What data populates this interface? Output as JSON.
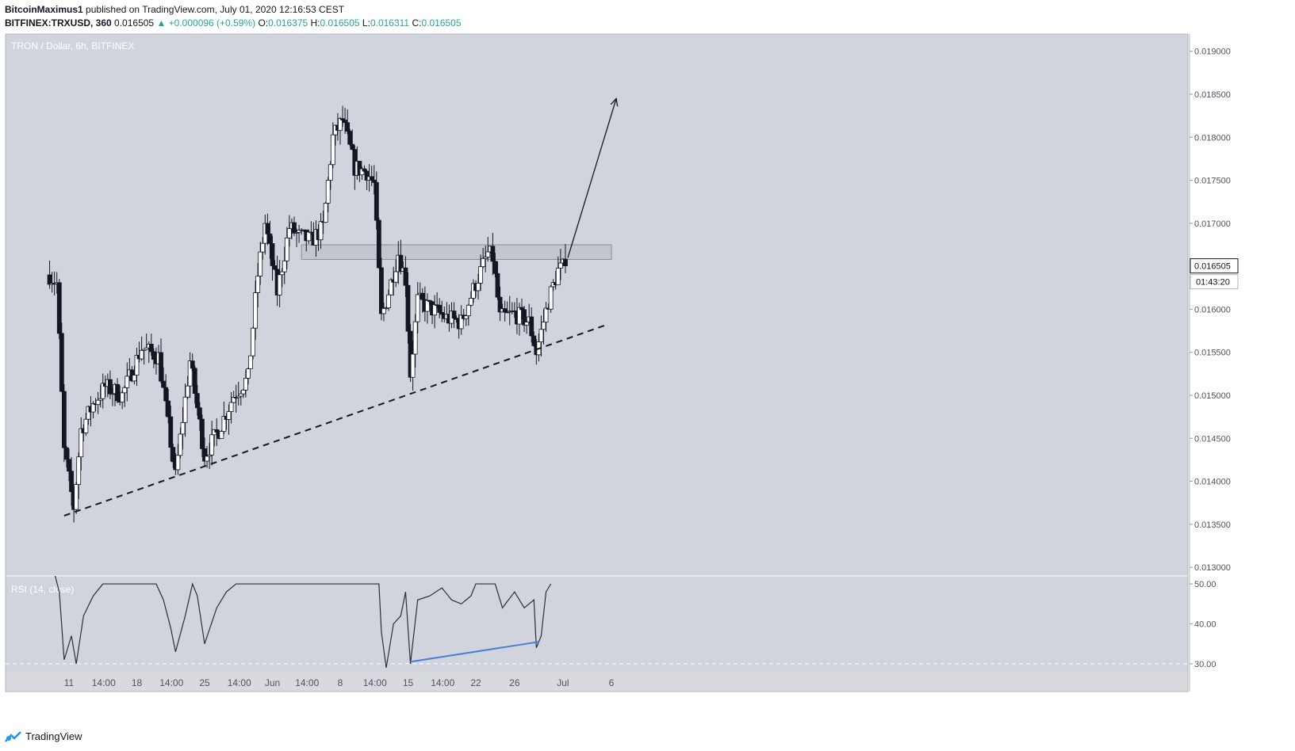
{
  "header": {
    "author": "BitcoinMaximus1",
    "published_text": "published on TradingView.com, July 01, 2020 12:16:53 CEST",
    "symbol": "BITFINEX:TRXUSD, 360",
    "last_price": "0.016505",
    "change": "▲ +0.000096 (+0.59%)",
    "o_label": "O:",
    "o_value": "0.016375",
    "h_label": "H:",
    "h_value": "0.016505",
    "l_label": "L:",
    "l_value": "0.016311",
    "c_label": "C:",
    "c_value": "0.016505"
  },
  "brand": {
    "name": "TradingView"
  },
  "colors": {
    "background": "#d1d4dc",
    "candle": "#131722",
    "rsi_divergence": "#4a7fd6",
    "resistance_box": "#c3c6ce"
  },
  "chart_data": [
    {
      "type": "candlestick",
      "title": "TRON / Dollar, 6h, BITFINEX",
      "y_ticks": [
        "0.013000",
        "0.013500",
        "0.014000",
        "0.014500",
        "0.015000",
        "0.015500",
        "0.016000",
        "0.016500",
        "0.017000",
        "0.017500",
        "0.018000",
        "0.018500",
        "0.019000"
      ],
      "ylim": [
        0.0129,
        0.0192
      ],
      "x_ticks": [
        "11",
        "14:00",
        "18",
        "14:00",
        "25",
        "14:00",
        "Jun",
        "14:00",
        "8",
        "14:00",
        "15",
        "14:00",
        "22",
        "26",
        "Jul",
        "6"
      ],
      "price_label": "0.016505",
      "countdown_label": "01:43:20",
      "resistance_zone": [
        0.01658,
        0.01675
      ],
      "anchor_points": [
        {
          "date": "2020-05-09 00:00",
          "close": 0.0164
        },
        {
          "date": "2020-05-09 18:00",
          "close": 0.0163
        },
        {
          "date": "2020-05-10 12:00",
          "close": 0.01435
        },
        {
          "date": "2020-05-11 12:00",
          "close": 0.0137
        },
        {
          "date": "2020-05-12 06:00",
          "close": 0.0146
        },
        {
          "date": "2020-05-13 12:00",
          "close": 0.0149
        },
        {
          "date": "2020-05-14 18:00",
          "close": 0.0151
        },
        {
          "date": "2020-05-16 12:00",
          "close": 0.015
        },
        {
          "date": "2020-05-18 12:00",
          "close": 0.01555
        },
        {
          "date": "2020-05-20 06:00",
          "close": 0.01545
        },
        {
          "date": "2020-05-22 00:00",
          "close": 0.01405
        },
        {
          "date": "2020-05-23 12:00",
          "close": 0.0154
        },
        {
          "date": "2020-05-25 00:00",
          "close": 0.0143
        },
        {
          "date": "2020-05-26 12:00",
          "close": 0.0146
        },
        {
          "date": "2020-05-28 00:00",
          "close": 0.015
        },
        {
          "date": "2020-05-29 12:00",
          "close": 0.0152
        },
        {
          "date": "2020-05-30 12:00",
          "close": 0.0164
        },
        {
          "date": "2020-05-31 06:00",
          "close": 0.017
        },
        {
          "date": "2020-06-01 12:00",
          "close": 0.0162
        },
        {
          "date": "2020-06-02 18:00",
          "close": 0.01695
        },
        {
          "date": "2020-06-03 18:00",
          "close": 0.01685
        },
        {
          "date": "2020-06-05 00:00",
          "close": 0.0168
        },
        {
          "date": "2020-06-06 06:00",
          "close": 0.01695
        },
        {
          "date": "2020-06-07 06:00",
          "close": 0.018
        },
        {
          "date": "2020-06-08 06:00",
          "close": 0.0182
        },
        {
          "date": "2020-06-09 12:00",
          "close": 0.01765
        },
        {
          "date": "2020-06-10 18:00",
          "close": 0.0176
        },
        {
          "date": "2020-06-11 12:00",
          "close": 0.01745
        },
        {
          "date": "2020-06-12 06:00",
          "close": 0.0159
        },
        {
          "date": "2020-06-13 00:00",
          "close": 0.0162
        },
        {
          "date": "2020-06-14 00:00",
          "close": 0.01665
        },
        {
          "date": "2020-06-14 18:00",
          "close": 0.01635
        },
        {
          "date": "2020-06-15 06:00",
          "close": 0.01525
        },
        {
          "date": "2020-06-16 00:00",
          "close": 0.0161
        },
        {
          "date": "2020-06-17 12:00",
          "close": 0.016
        },
        {
          "date": "2020-06-19 00:00",
          "close": 0.0159
        },
        {
          "date": "2020-06-20 12:00",
          "close": 0.01585
        },
        {
          "date": "2020-06-22 00:00",
          "close": 0.0163
        },
        {
          "date": "2020-06-23 06:00",
          "close": 0.01665
        },
        {
          "date": "2020-06-23 18:00",
          "close": 0.0166
        },
        {
          "date": "2020-06-24 12:00",
          "close": 0.0159
        },
        {
          "date": "2020-06-26 00:00",
          "close": 0.01595
        },
        {
          "date": "2020-06-27 12:00",
          "close": 0.01585
        },
        {
          "date": "2020-06-28 06:00",
          "close": 0.0155
        },
        {
          "date": "2020-06-29 12:00",
          "close": 0.0161
        },
        {
          "date": "2020-06-30 12:00",
          "close": 0.01645
        },
        {
          "date": "2020-07-01 06:00",
          "close": 0.0165
        }
      ],
      "rsi": {
        "title": "RSI (14, close)",
        "y_ticks": [
          "30.00",
          "40.00",
          "50.00"
        ],
        "ylim": [
          28,
          52
        ],
        "points": [
          {
            "date": "2020-05-09 06:00",
            "value": 55
          },
          {
            "date": "2020-05-10 00:00",
            "value": 48
          },
          {
            "date": "2020-05-10 12:00",
            "value": 31
          },
          {
            "date": "2020-05-11 06:00",
            "value": 37
          },
          {
            "date": "2020-05-11 18:00",
            "value": 30
          },
          {
            "date": "2020-05-12 12:00",
            "value": 42
          },
          {
            "date": "2020-05-13 12:00",
            "value": 47
          },
          {
            "date": "2020-05-14 12:00",
            "value": 50
          },
          {
            "date": "2020-05-20 00:00",
            "value": 50
          },
          {
            "date": "2020-05-20 18:00",
            "value": 46
          },
          {
            "date": "2020-05-21 12:00",
            "value": 39
          },
          {
            "date": "2020-05-22 00:00",
            "value": 33
          },
          {
            "date": "2020-05-23 00:00",
            "value": 42
          },
          {
            "date": "2020-05-23 18:00",
            "value": 50
          },
          {
            "date": "2020-05-24 06:00",
            "value": 47
          },
          {
            "date": "2020-05-25 00:00",
            "value": 35
          },
          {
            "date": "2020-05-26 06:00",
            "value": 44
          },
          {
            "date": "2020-05-27 06:00",
            "value": 48
          },
          {
            "date": "2020-05-28 06:00",
            "value": 50
          },
          {
            "date": "2020-06-12 00:00",
            "value": 50
          },
          {
            "date": "2020-06-12 06:00",
            "value": 38
          },
          {
            "date": "2020-06-12 18:00",
            "value": 29
          },
          {
            "date": "2020-06-13 12:00",
            "value": 40
          },
          {
            "date": "2020-06-14 06:00",
            "value": 42
          },
          {
            "date": "2020-06-14 18:00",
            "value": 48
          },
          {
            "date": "2020-06-15 06:00",
            "value": 30
          },
          {
            "date": "2020-06-16 00:00",
            "value": 46
          },
          {
            "date": "2020-06-17 06:00",
            "value": 47
          },
          {
            "date": "2020-06-18 12:00",
            "value": 49
          },
          {
            "date": "2020-06-19 12:00",
            "value": 46
          },
          {
            "date": "2020-06-20 12:00",
            "value": 45
          },
          {
            "date": "2020-06-21 12:00",
            "value": 47
          },
          {
            "date": "2020-06-22 00:00",
            "value": 50
          },
          {
            "date": "2020-06-24 00:00",
            "value": 50
          },
          {
            "date": "2020-06-24 18:00",
            "value": 44
          },
          {
            "date": "2020-06-26 00:00",
            "value": 48
          },
          {
            "date": "2020-06-27 00:00",
            "value": 44
          },
          {
            "date": "2020-06-28 00:00",
            "value": 46
          },
          {
            "date": "2020-06-28 06:00",
            "value": 34
          },
          {
            "date": "2020-06-28 18:00",
            "value": 37
          },
          {
            "date": "2020-06-29 06:00",
            "value": 48
          },
          {
            "date": "2020-06-29 18:00",
            "value": 50
          }
        ],
        "divergence_line": [
          {
            "date": "2020-06-15 06:00",
            "value": 30.5
          },
          {
            "date": "2020-06-28 12:00",
            "value": 35.5
          }
        ]
      },
      "trendline": [
        {
          "date": "2020-05-10 12:00",
          "price": 0.0136
        },
        {
          "date": "2020-07-05 12:00",
          "price": 0.01582
        }
      ],
      "projection_arrow": [
        {
          "date": "2020-07-01 12:00",
          "price": 0.0166
        },
        {
          "date": "2020-07-06 12:00",
          "price": 0.01845
        }
      ]
    }
  ]
}
